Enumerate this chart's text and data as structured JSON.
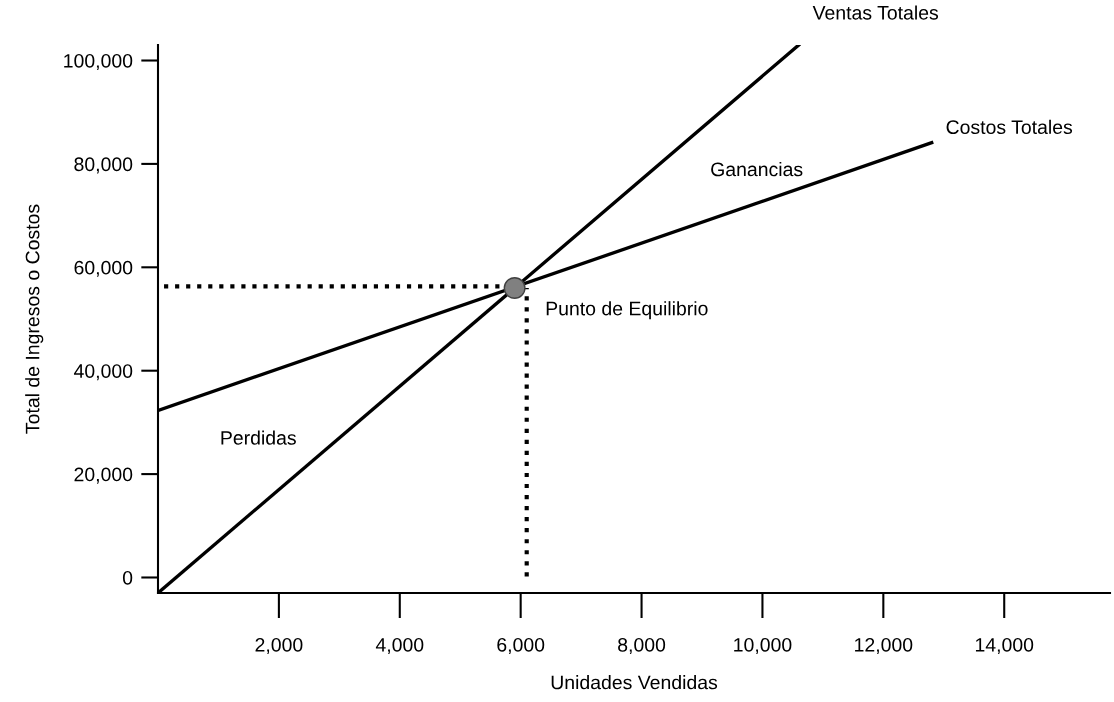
{
  "chart_data": {
    "type": "line",
    "xlabel": "Unidades Vendidas",
    "ylabel": "Total de Ingresos o Costos",
    "xlim": [
      0,
      15750
    ],
    "ylim": [
      -3000,
      103000
    ],
    "xticks": [
      {
        "value": 2000,
        "label": "2,000"
      },
      {
        "value": 4000,
        "label": "4,000"
      },
      {
        "value": 6000,
        "label": "6,000"
      },
      {
        "value": 8000,
        "label": "8,000"
      },
      {
        "value": 10000,
        "label": "10,000"
      },
      {
        "value": 12000,
        "label": "12,000"
      },
      {
        "value": 14000,
        "label": "14,000"
      }
    ],
    "yticks": [
      0,
      {
        "value": 20000,
        "label": "20,000"
      },
      {
        "value": 40000,
        "label": "40,000"
      },
      {
        "value": 60000,
        "label": "60,000"
      },
      {
        "value": 80000,
        "label": "80,000"
      },
      {
        "value": 100000,
        "label": "100,000"
      }
    ],
    "grid": false,
    "legend": false,
    "series": [
      {
        "color": "#000000",
        "x": [
          0,
          10600
        ],
        "values": [
          -3000,
          103000
        ],
        "line_style": "solid",
        "marker": "none"
      },
      {
        "color": "#000000",
        "x": [
          0,
          12800
        ],
        "values": [
          32300,
          84100
        ],
        "line_style": "solid",
        "marker": "none"
      },
      {
        "color": "#000000",
        "x": [
          100,
          5900
        ],
        "values": [
          56300,
          56300
        ],
        "line_style": "dotted",
        "marker": "none"
      },
      {
        "color": "#000000",
        "x": [
          6100,
          6100
        ],
        "values": [
          200,
          56000
        ],
        "line_style": "dotted",
        "marker": "none"
      },
      {
        "type": "scatter",
        "color": "#808080",
        "x": [
          5900
        ],
        "values": [
          56000
        ],
        "marker": "circle"
      }
    ],
    "annotations": [
      {
        "text": "Ventas Totales",
        "x": 10600,
        "y": 103000
      },
      {
        "text": "Costos Totales",
        "x": 12800,
        "y": 84100
      },
      "Ganancias",
      "Perdidas",
      {
        "text": "Punto de Equilibrio",
        "x": 5900,
        "y": 56000
      }
    ]
  }
}
